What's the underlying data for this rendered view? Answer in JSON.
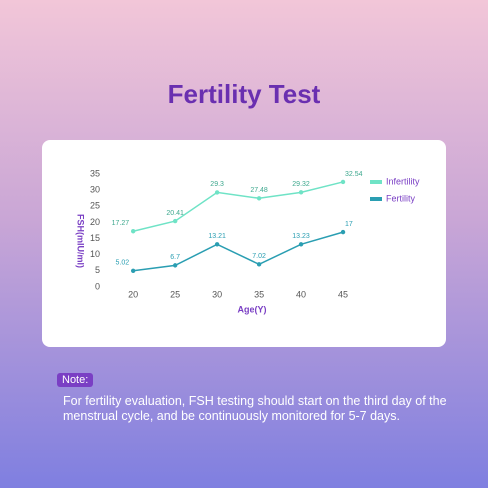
{
  "title": "Fertility Test",
  "chart_data": {
    "type": "line",
    "x": [
      20,
      25,
      30,
      35,
      40,
      45
    ],
    "series": [
      {
        "name": "Infertility",
        "color": "#6fe3c6",
        "values": [
          17.27,
          20.41,
          29.3,
          27.48,
          29.32,
          32.54
        ]
      },
      {
        "name": "Fertility",
        "color": "#2a9eb2",
        "values": [
          5.02,
          6.7,
          13.21,
          7.02,
          13.23,
          17
        ]
      }
    ],
    "xlabel": "Age(Y)",
    "ylabel": "FSH(mIU/ml)",
    "xlim": [
      17,
      50
    ],
    "xticks": [
      20,
      25,
      30,
      35,
      40,
      45
    ],
    "ylim": [
      0,
      35
    ],
    "yticks": [
      0,
      5,
      10,
      15,
      20,
      25,
      30,
      35
    ],
    "legend": "right"
  },
  "note": {
    "label": "Note:",
    "text": "For fertility evaluation, FSH testing should start on the third day of the menstrual cycle, and be continuously monitored for 5-7 days."
  }
}
